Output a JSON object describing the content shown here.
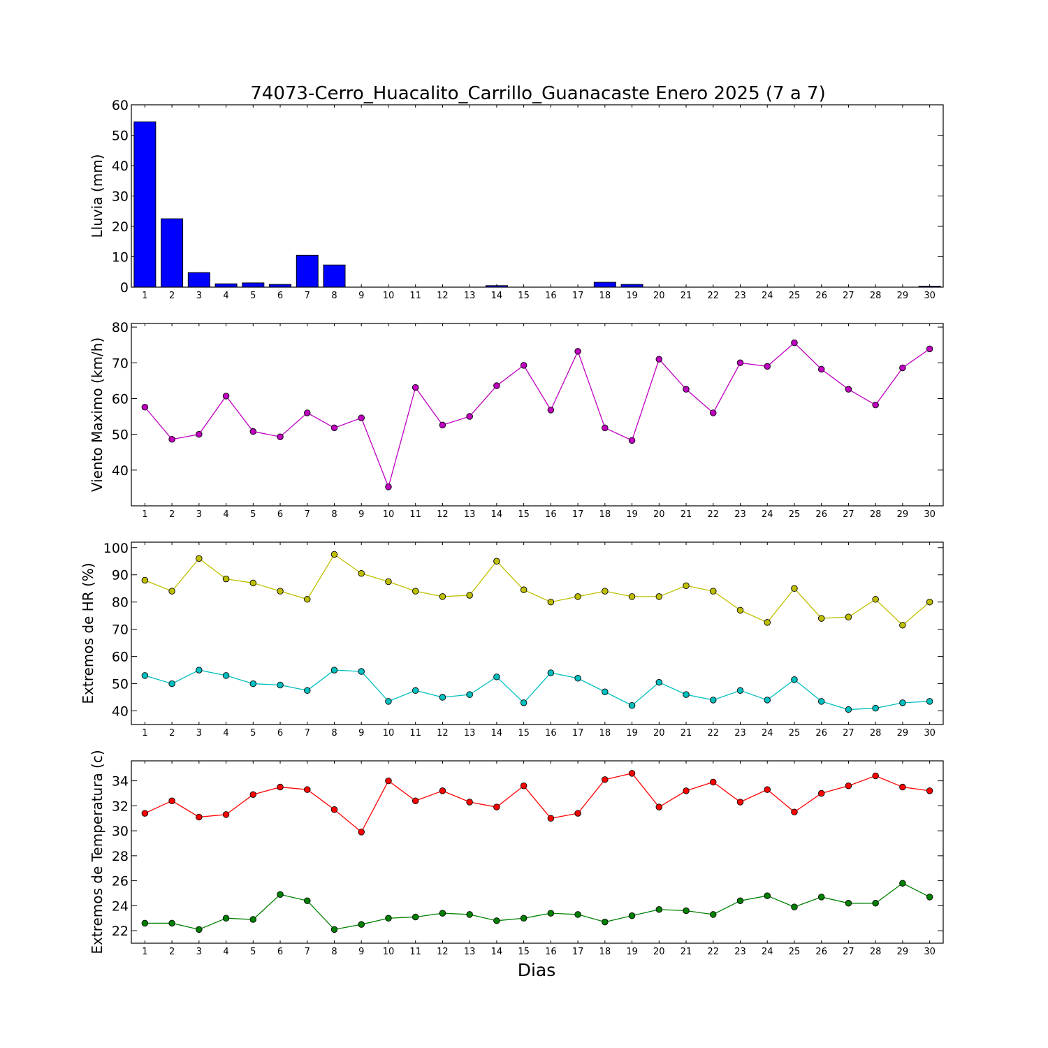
{
  "title": "74073-Cerro_Huacalito_Carrillo_Guanacaste Enero 2025  (7 a 7)",
  "xlabel": "Dias",
  "days": [
    1,
    2,
    3,
    4,
    5,
    6,
    7,
    8,
    9,
    10,
    11,
    12,
    13,
    14,
    15,
    16,
    17,
    18,
    19,
    20,
    21,
    22,
    23,
    24,
    25,
    26,
    27,
    28,
    29,
    30
  ],
  "chart_data": [
    {
      "type": "bar",
      "ylabel": "Lluvia (mm)",
      "ylim": [
        0,
        60
      ],
      "yticks": [
        0,
        10,
        20,
        30,
        40,
        50,
        60
      ],
      "x": [
        1,
        2,
        3,
        4,
        5,
        6,
        7,
        8,
        9,
        10,
        11,
        12,
        13,
        14,
        15,
        16,
        17,
        18,
        19,
        20,
        21,
        22,
        23,
        24,
        25,
        26,
        27,
        28,
        29,
        30
      ],
      "series": [
        {
          "color": "#0000ff",
          "values": [
            54.4,
            22.5,
            4.8,
            1.1,
            1.4,
            0.9,
            10.5,
            7.3,
            0,
            0,
            0,
            0,
            0,
            0.5,
            0,
            0,
            0,
            1.6,
            0.9,
            0,
            0,
            0,
            0,
            0,
            0,
            0,
            0,
            0,
            0,
            0.3
          ]
        }
      ]
    },
    {
      "type": "line",
      "ylabel": "Viento Maximo (km/h)",
      "ylim": [
        30,
        81
      ],
      "yticks": [
        40,
        50,
        60,
        70,
        80
      ],
      "x": [
        1,
        2,
        3,
        4,
        5,
        6,
        7,
        8,
        9,
        10,
        11,
        12,
        13,
        14,
        15,
        16,
        17,
        18,
        19,
        20,
        21,
        22,
        23,
        24,
        25,
        26,
        27,
        28,
        29,
        30
      ],
      "series": [
        {
          "color": "#bf00bf",
          "values": [
            57.6,
            48.6,
            50.0,
            60.7,
            50.8,
            49.3,
            56.0,
            51.8,
            54.6,
            35.3,
            63.1,
            52.6,
            55.0,
            63.6,
            69.3,
            56.8,
            73.2,
            51.8,
            48.3,
            71.0,
            62.6,
            56.0,
            70.0,
            69.0,
            75.6,
            68.2,
            62.6,
            58.2,
            68.6,
            73.9
          ]
        }
      ]
    },
    {
      "type": "line",
      "ylabel": "Extremos de HR (%)",
      "ylim": [
        35,
        102
      ],
      "yticks": [
        40,
        50,
        60,
        70,
        80,
        90,
        100
      ],
      "x": [
        1,
        2,
        3,
        4,
        5,
        6,
        7,
        8,
        9,
        10,
        11,
        12,
        13,
        14,
        15,
        16,
        17,
        18,
        19,
        20,
        21,
        22,
        23,
        24,
        25,
        26,
        27,
        28,
        29,
        30
      ],
      "series": [
        {
          "color": "#bfbf00",
          "values": [
            88.0,
            84.0,
            96.0,
            88.5,
            87.0,
            84.0,
            81.0,
            97.5,
            90.5,
            87.5,
            84.0,
            82.0,
            82.5,
            95.0,
            84.5,
            80.0,
            82.0,
            84.0,
            82.0,
            82.0,
            86.0,
            84.0,
            77.0,
            72.5,
            85.0,
            74.0,
            74.5,
            81.0,
            71.5,
            80.0
          ]
        },
        {
          "color": "#00bfbf",
          "values": [
            53.0,
            50.0,
            55.0,
            53.0,
            50.0,
            49.5,
            47.5,
            55.0,
            54.5,
            43.5,
            47.5,
            45.0,
            46.0,
            52.5,
            43.0,
            54.0,
            52.0,
            47.0,
            42.0,
            50.5,
            46.0,
            44.0,
            47.5,
            44.0,
            51.5,
            43.5,
            40.5,
            41.0,
            43.0,
            43.5
          ]
        }
      ]
    },
    {
      "type": "line",
      "ylabel": "Extremos de Temperatura (c)",
      "ylim": [
        21,
        35.6
      ],
      "yticks": [
        22,
        24,
        26,
        28,
        30,
        32,
        34
      ],
      "x": [
        1,
        2,
        3,
        4,
        5,
        6,
        7,
        8,
        9,
        10,
        11,
        12,
        13,
        14,
        15,
        16,
        17,
        18,
        19,
        20,
        21,
        22,
        23,
        24,
        25,
        26,
        27,
        28,
        29,
        30
      ],
      "series": [
        {
          "color": "#ff0000",
          "values": [
            31.4,
            32.4,
            31.1,
            31.3,
            32.9,
            33.5,
            33.3,
            31.7,
            29.9,
            34.0,
            32.4,
            33.2,
            32.3,
            31.9,
            33.6,
            31.0,
            31.4,
            34.1,
            34.6,
            31.9,
            33.2,
            33.9,
            32.3,
            33.3,
            31.5,
            33.0,
            33.6,
            34.4,
            33.5,
            33.2
          ]
        },
        {
          "color": "#008000",
          "values": [
            22.6,
            22.6,
            22.1,
            23.0,
            22.9,
            24.9,
            24.4,
            22.1,
            22.5,
            23.0,
            23.1,
            23.4,
            23.3,
            22.8,
            23.0,
            23.4,
            23.3,
            22.7,
            23.2,
            23.7,
            23.6,
            23.3,
            24.4,
            24.8,
            23.9,
            24.7,
            24.2,
            24.2,
            25.8,
            24.7
          ]
        }
      ]
    }
  ]
}
